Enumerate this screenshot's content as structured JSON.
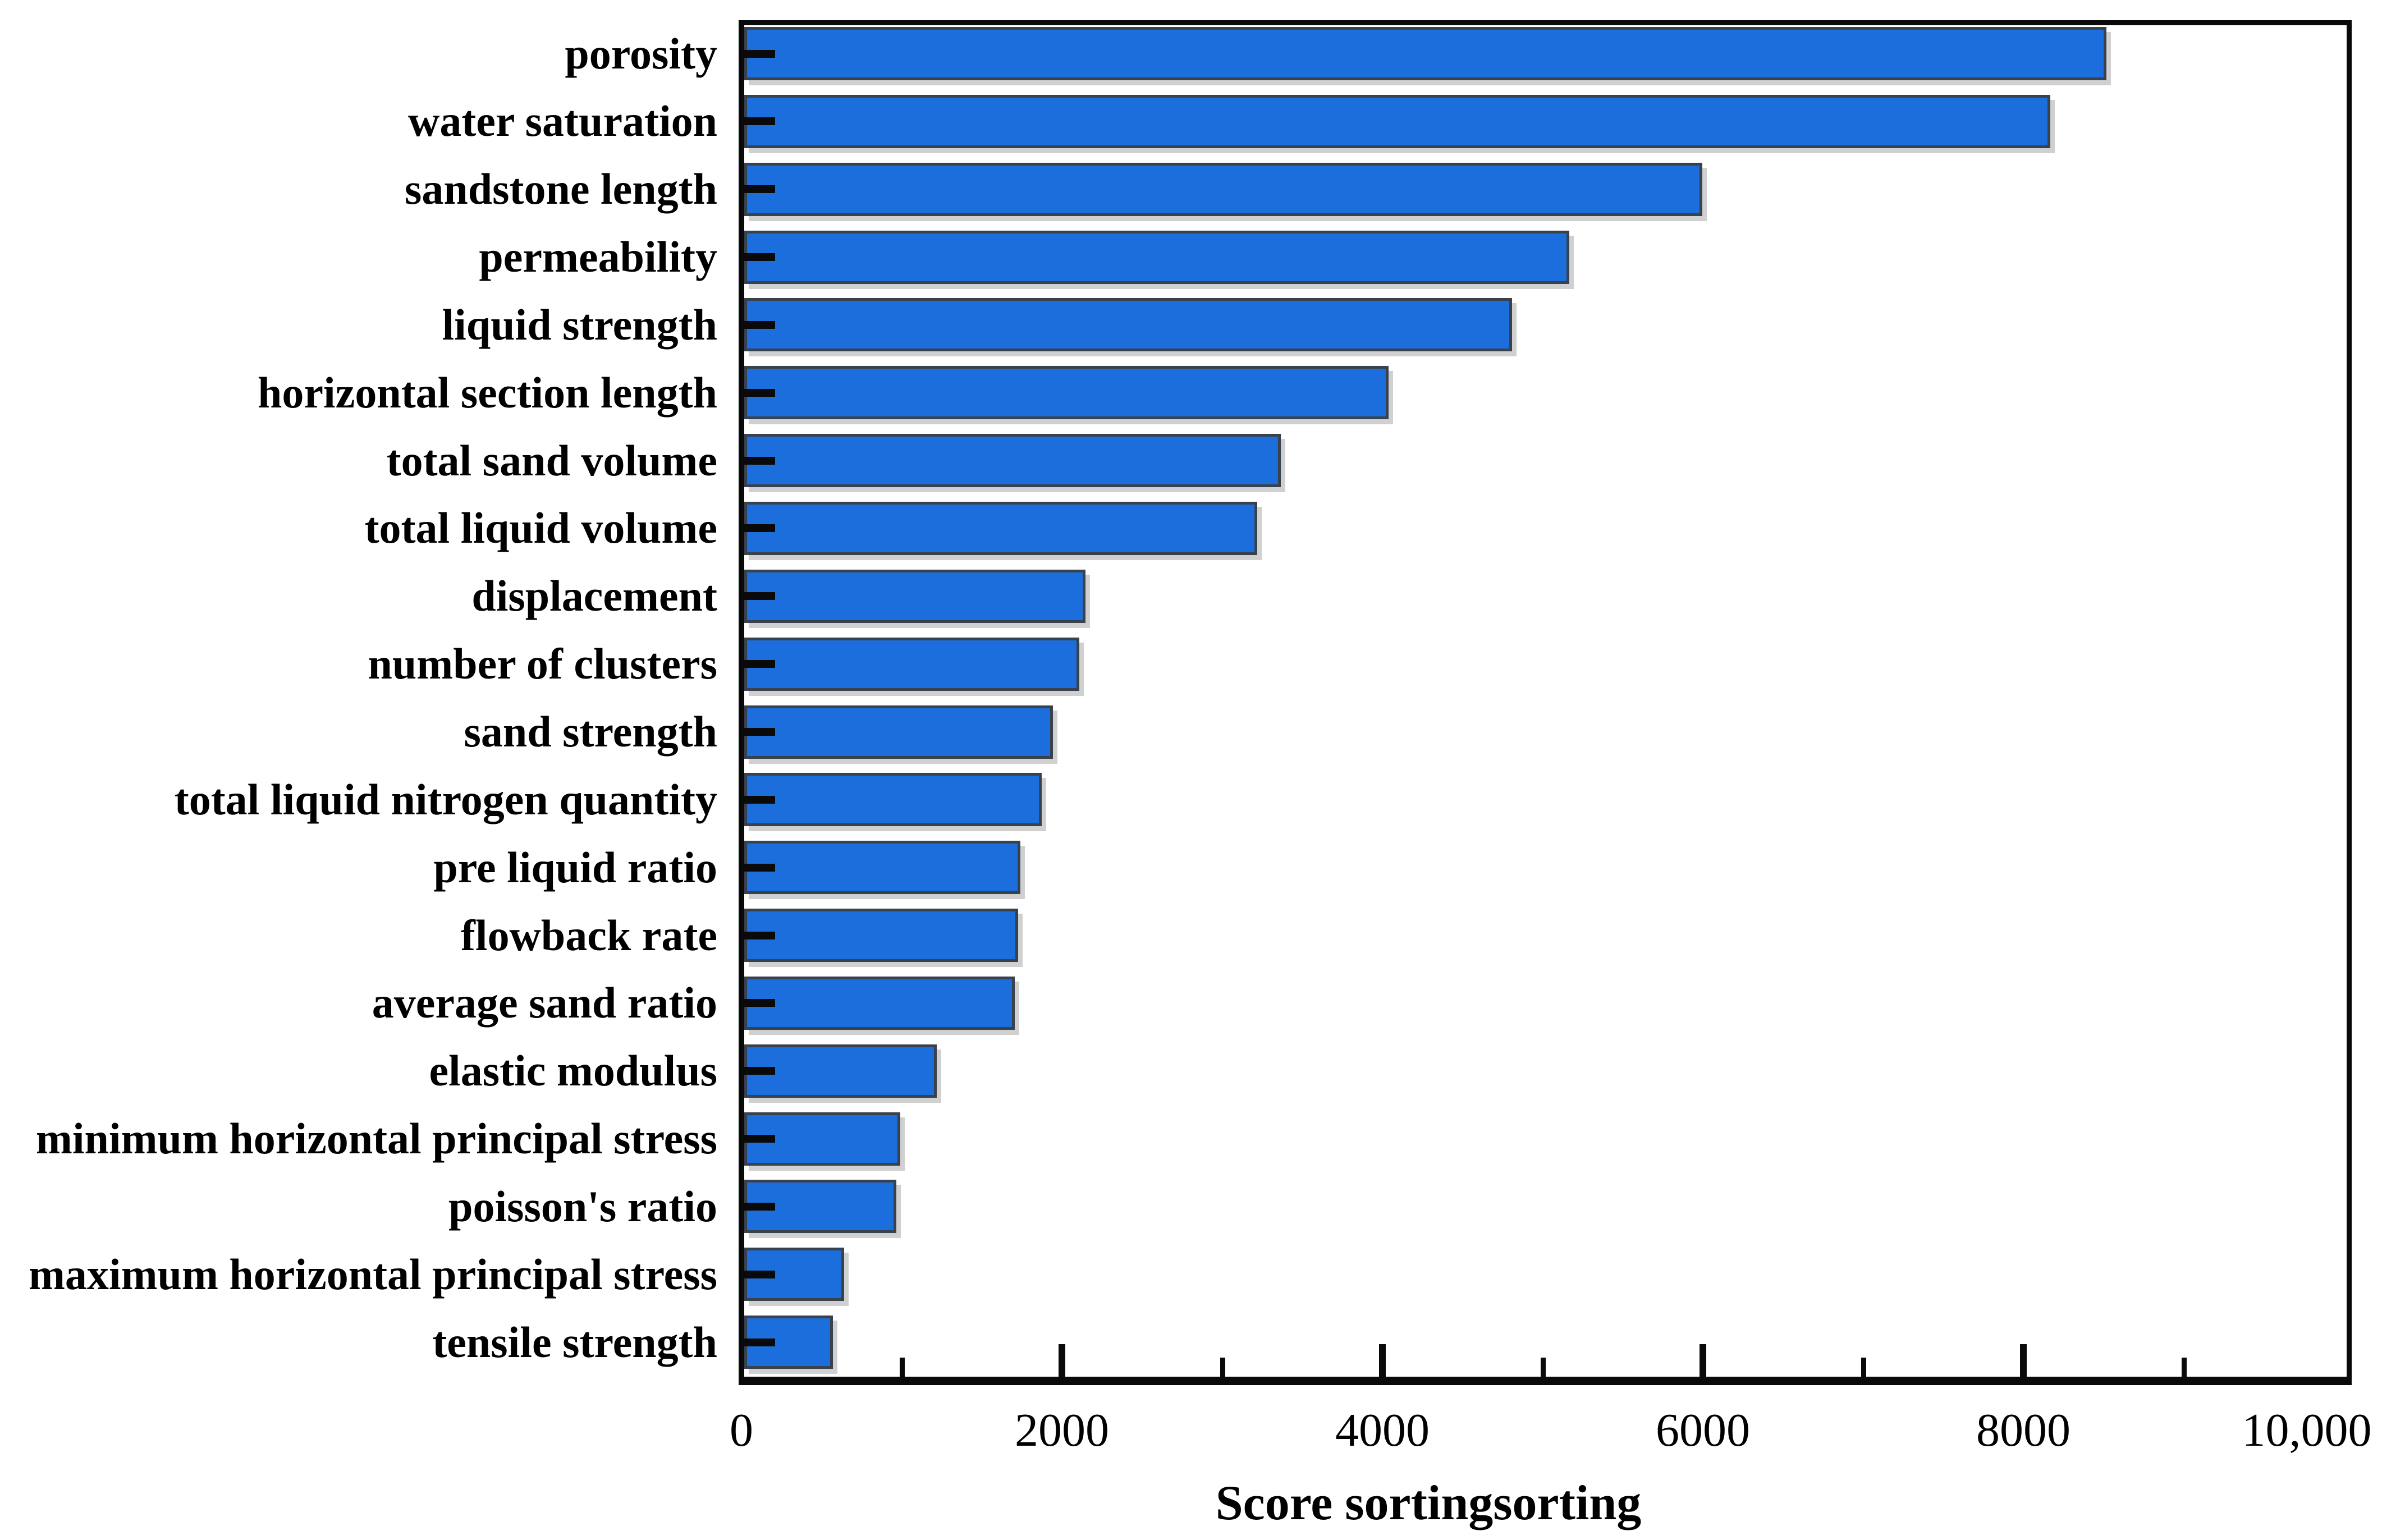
{
  "chart_data": {
    "type": "bar",
    "orientation": "horizontal",
    "title": "",
    "xlabel": "Score sortingsorting",
    "ylabel": "",
    "xlim": [
      0,
      10000
    ],
    "grid": false,
    "legend_position": "none",
    "bar_color": "#1b6edb",
    "bar_border_color": "#39414d",
    "axis_color": "#0a0a0a",
    "categories": [
      "porosity",
      "water saturation",
      "sandstone length",
      "permeability",
      "liquid strength",
      "horizontal section length",
      "total sand volume",
      "total liquid volume",
      "displacement",
      "number of clusters",
      "sand strength",
      "total liquid nitrogen quantity",
      "pre liquid ratio",
      "flowback rate",
      "average sand ratio",
      "elastic modulus",
      "minimum horizontal principal stress",
      "poisson's ratio",
      "maximum horizontal principal stress",
      "tensile strength"
    ],
    "values": [
      8500,
      8150,
      5980,
      5150,
      4790,
      4020,
      3350,
      3200,
      2130,
      2090,
      1925,
      1855,
      1725,
      1710,
      1690,
      1200,
      975,
      950,
      625,
      555
    ],
    "x_ticks_major": [
      0,
      2000,
      4000,
      6000,
      8000,
      10000
    ],
    "x_tick_labels": [
      "0",
      "2000",
      "4000",
      "6000",
      "8000",
      "10,000"
    ],
    "x_ticks_minor": [
      1000,
      3000,
      5000,
      7000,
      9000
    ]
  }
}
